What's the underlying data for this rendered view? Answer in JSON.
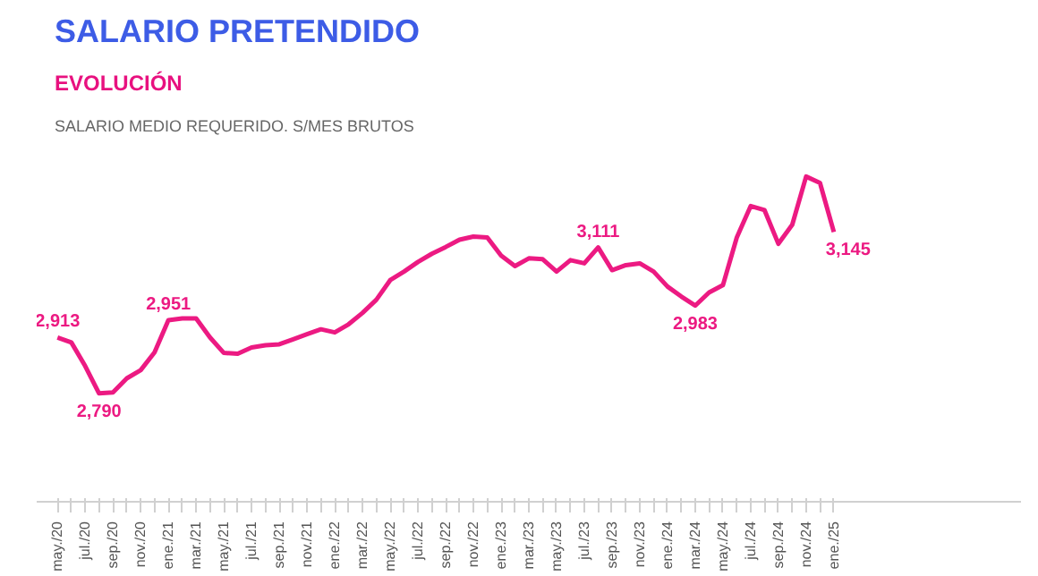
{
  "chart_data": {
    "type": "line",
    "title": "SALARIO PRETENDIDO",
    "subtitle": "EVOLUCIÓN",
    "annotations": [
      "SALARIO MEDIO REQUERIDO. S/MES BRUTOS"
    ],
    "categories": [
      "may./20",
      null,
      "jul./20",
      null,
      "sep./20",
      null,
      "nov./20",
      null,
      "ene./21",
      null,
      "mar./21",
      null,
      "may./21",
      null,
      "jul./21",
      null,
      "sep./21",
      null,
      "nov./21",
      null,
      "ene./22",
      null,
      "mar./22",
      null,
      "may./22",
      null,
      "jul./22",
      null,
      "sep./22",
      null,
      "nov./22",
      null,
      "ene./23",
      null,
      "mar./23",
      null,
      "may./23",
      null,
      "jul./23",
      null,
      "sep./23",
      null,
      "nov./23",
      null,
      "ene./24",
      null,
      "mar./24",
      null,
      "may./24",
      null,
      "jul./24",
      null,
      "sep./24",
      null,
      "nov./24",
      null,
      "ene./25"
    ],
    "series": [
      {
        "color": "#ec1a82",
        "values": [
          2913,
          2902,
          2850,
          2790,
          2792,
          2823,
          2841,
          2880,
          2951,
          2955,
          2955,
          2913,
          2879,
          2877,
          2891,
          2896,
          2898,
          2909,
          2920,
          2931,
          2924,
          2942,
          2967,
          2996,
          3039,
          3058,
          3079,
          3097,
          3112,
          3128,
          3135,
          3133,
          3093,
          3070,
          3087,
          3085,
          3058,
          3083,
          3076,
          3111,
          3061,
          3072,
          3076,
          3058,
          3025,
          3003,
          2983,
          3012,
          3028,
          3133,
          3202,
          3193,
          3119,
          3161,
          3267,
          3253,
          3145
        ],
        "value_labels": [
          "2,913",
          null,
          null,
          "2,790",
          null,
          null,
          null,
          null,
          "2,951",
          null,
          null,
          null,
          null,
          null,
          null,
          null,
          null,
          null,
          null,
          null,
          null,
          null,
          null,
          null,
          null,
          null,
          null,
          null,
          null,
          null,
          null,
          null,
          null,
          null,
          null,
          null,
          null,
          null,
          null,
          "3,111",
          null,
          null,
          null,
          null,
          null,
          null,
          "2,983",
          null,
          null,
          null,
          null,
          null,
          null,
          null,
          null,
          null,
          "3,145"
        ]
      }
    ],
    "marker": "none",
    "line_style": "solid"
  }
}
